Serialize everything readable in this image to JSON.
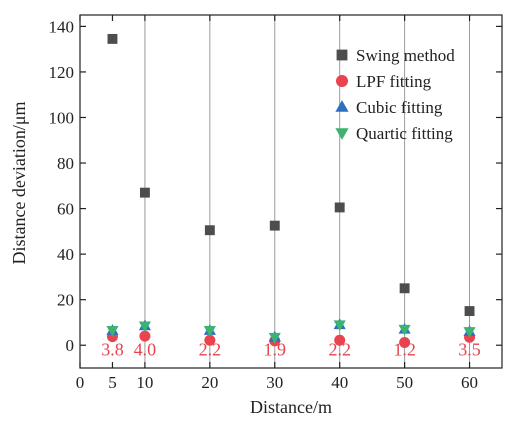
{
  "chart_data": {
    "type": "scatter",
    "xlabel": "Distance/m",
    "ylabel": "Distance deviation/μm",
    "xlim": [
      0,
      65
    ],
    "ylim": [
      -10,
      145
    ],
    "xticks": [
      0,
      5,
      10,
      20,
      30,
      40,
      50,
      60
    ],
    "yticks": [
      0,
      20,
      40,
      60,
      80,
      100,
      120,
      140
    ],
    "grid_x": [
      10,
      20,
      30,
      40,
      50,
      60
    ],
    "grid": "vertical",
    "legend_position": "top-right",
    "series": [
      {
        "name": "Swing method",
        "marker": "square",
        "color": "#4d4d4d",
        "x": [
          5,
          10,
          20,
          30,
          40,
          50,
          60
        ],
        "y": [
          134.5,
          67,
          50.5,
          52.5,
          60.5,
          25,
          15
        ]
      },
      {
        "name": "LPF fitting",
        "marker": "circle",
        "color": "#e8434e",
        "x": [
          5,
          10,
          20,
          30,
          40,
          50,
          60
        ],
        "y": [
          3.8,
          4.0,
          2.2,
          1.9,
          2.2,
          1.2,
          3.5
        ]
      },
      {
        "name": "Cubic fitting",
        "marker": "triangle-up",
        "color": "#2f6fbf",
        "x": [
          5,
          10,
          20,
          30,
          40,
          50,
          60
        ],
        "y": [
          6.5,
          8.5,
          6.5,
          3.5,
          9,
          7,
          6
        ]
      },
      {
        "name": "Quartic fitting",
        "marker": "triangle-down",
        "color": "#3cb371",
        "x": [
          5,
          10,
          20,
          30,
          40,
          50,
          60
        ],
        "y": [
          6.5,
          8.5,
          6.5,
          3.5,
          9,
          7,
          6
        ]
      }
    ],
    "data_labels": [
      {
        "x": 5,
        "text": "3.8"
      },
      {
        "x": 10,
        "text": "4.0"
      },
      {
        "x": 20,
        "text": "2.2"
      },
      {
        "x": 30,
        "text": "1.9"
      },
      {
        "x": 40,
        "text": "2.2"
      },
      {
        "x": 50,
        "text": "1.2"
      },
      {
        "x": 60,
        "text": "3.5"
      }
    ],
    "data_label_color": "#e8434e"
  }
}
